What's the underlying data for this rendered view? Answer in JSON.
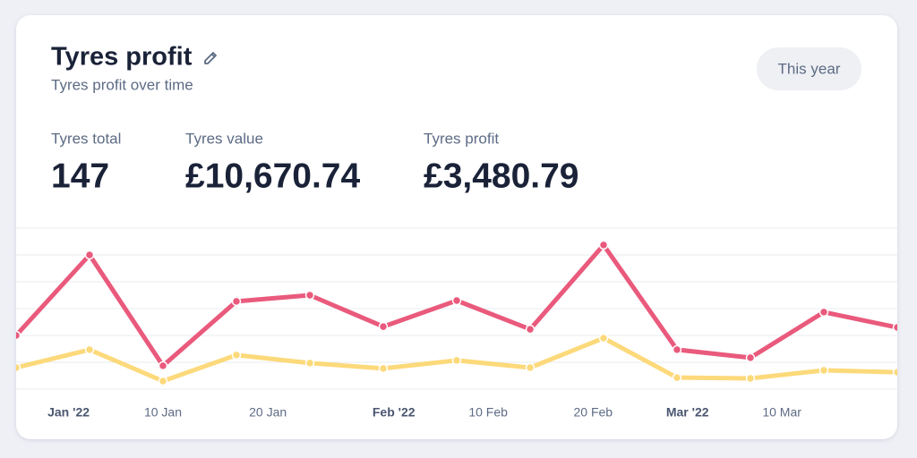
{
  "header": {
    "title": "Tyres profit",
    "subtitle": "Tyres profit over time",
    "button": "This year"
  },
  "stats": [
    {
      "label": "Tyres total",
      "value": "147"
    },
    {
      "label": "Tyres value",
      "value": "£10,670.74"
    },
    {
      "label": "Tyres profit",
      "value": "£3,480.79"
    }
  ],
  "chart_data": {
    "type": "line",
    "x": [
      -4,
      3,
      10,
      17,
      24,
      31,
      38,
      45,
      52,
      59,
      66,
      73,
      80
    ],
    "series": [
      {
        "color": "#e95a7c",
        "values": [
          2.0,
          5.0,
          0.87,
          3.27,
          3.5,
          2.33,
          3.3,
          2.23,
          5.37,
          1.47,
          1.17,
          2.87,
          2.3
        ]
      },
      {
        "color": "#fcd97a",
        "values": [
          0.8,
          1.47,
          0.3,
          1.27,
          0.97,
          0.77,
          1.07,
          0.8,
          1.9,
          0.43,
          0.4,
          0.7,
          0.63
        ]
      }
    ],
    "xlim": [
      -4,
      80
    ],
    "xticks": [
      {
        "value": 1,
        "label": "Jan '22"
      },
      {
        "value": 10,
        "label": "10 Jan"
      },
      {
        "value": 20,
        "label": "20 Jan"
      },
      {
        "value": 32,
        "label": "Feb '22"
      },
      {
        "value": 41,
        "label": "10 Feb"
      },
      {
        "value": 51,
        "label": "20 Feb"
      },
      {
        "value": 60,
        "label": "Mar '22"
      },
      {
        "value": 69,
        "label": "10 Mar"
      }
    ],
    "ylim": [
      0,
      6
    ],
    "yticks": [
      0,
      1,
      2,
      3,
      4,
      5,
      6
    ],
    "grid": true
  }
}
